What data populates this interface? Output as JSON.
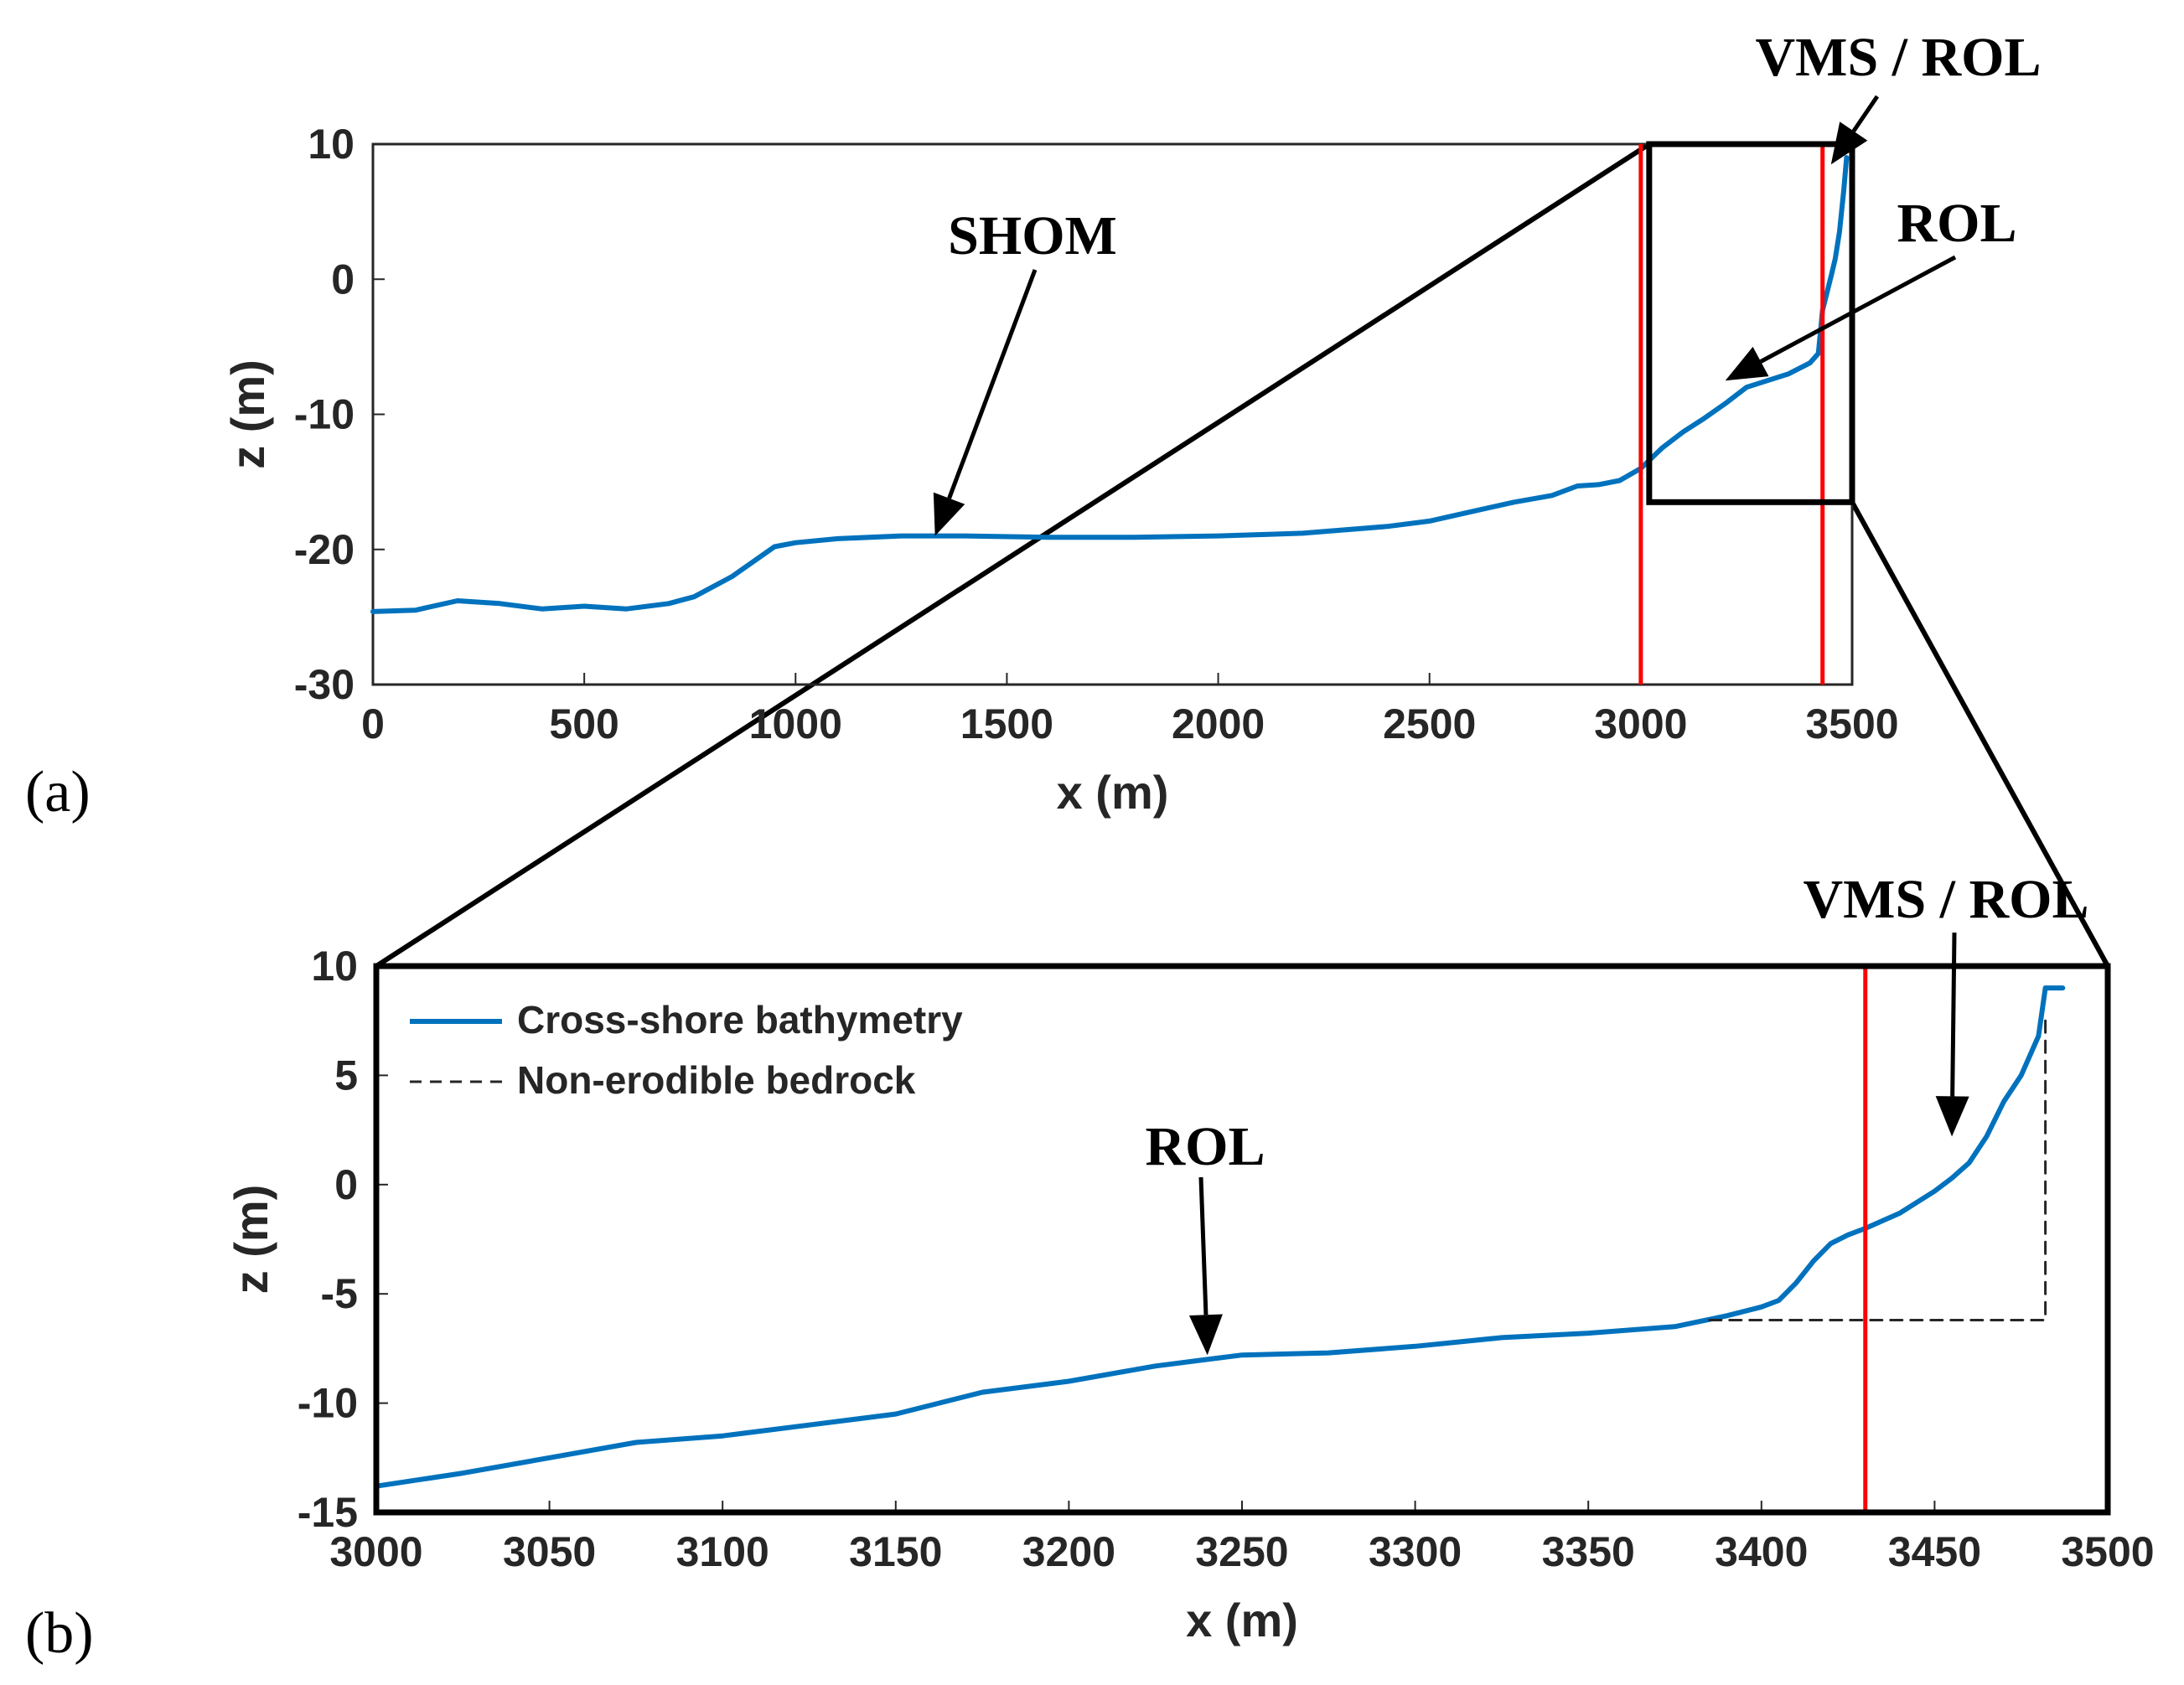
{
  "chart_data": [
    {
      "id": "a",
      "type": "line",
      "panel_label": "(a)",
      "xlabel": "x (m)",
      "ylabel": "z (m)",
      "xlim": [
        0,
        3500
      ],
      "ylim": [
        -30,
        10
      ],
      "xticks": [
        0,
        500,
        1000,
        1500,
        2000,
        2500,
        3000,
        3500
      ],
      "yticks": [
        10,
        0,
        -10,
        -20,
        -30
      ],
      "series": [
        {
          "name": "Cross-shore bathymetry",
          "color": "#0072bd",
          "x": [
            0,
            100,
            200,
            300,
            400,
            500,
            600,
            700,
            760,
            850,
            950,
            1000,
            1100,
            1250,
            1400,
            1600,
            1800,
            2000,
            2200,
            2400,
            2500,
            2600,
            2700,
            2790,
            2850,
            2900,
            2950,
            3000,
            3050,
            3100,
            3150,
            3200,
            3250,
            3300,
            3350,
            3400,
            3420,
            3430,
            3450,
            3460,
            3470,
            3480,
            3487
          ],
          "y": [
            -24.6,
            -24.5,
            -23.8,
            -24.0,
            -24.4,
            -24.2,
            -24.4,
            -24.0,
            -23.5,
            -22.0,
            -19.8,
            -19.5,
            -19.2,
            -19.0,
            -19.0,
            -19.1,
            -19.1,
            -19.0,
            -18.8,
            -18.3,
            -17.9,
            -17.2,
            -16.5,
            -16.0,
            -15.3,
            -15.2,
            -14.9,
            -14.0,
            -12.5,
            -11.3,
            -10.3,
            -9.2,
            -8.0,
            -7.5,
            -7.0,
            -6.2,
            -5.5,
            -2.3,
            0.2,
            1.5,
            3.5,
            6.5,
            9.0
          ]
        }
      ],
      "vlines": [
        3000,
        3430
      ],
      "vline_color": "#ff0000",
      "zoom_box": {
        "x": [
          3000,
          3500
        ],
        "y": [
          -16.5,
          10
        ]
      },
      "annotations": [
        {
          "text": "SHOM",
          "points_to": [
            1330,
            -19
          ]
        },
        {
          "text": "ROL",
          "points_to": [
            3200,
            -7.5
          ]
        },
        {
          "text": "VMS / ROL",
          "points_to": [
            3450,
            8.5
          ]
        }
      ]
    },
    {
      "id": "b",
      "type": "line",
      "panel_label": "(b)",
      "xlabel": "x (m)",
      "ylabel": "z (m)",
      "xlim": [
        3000,
        3500
      ],
      "ylim": [
        -15,
        10
      ],
      "xticks": [
        3000,
        3050,
        3100,
        3150,
        3200,
        3250,
        3300,
        3350,
        3400,
        3450,
        3500
      ],
      "yticks": [
        10,
        5,
        0,
        -5,
        -10,
        -15
      ],
      "legend": {
        "placement": "top-left",
        "entries": [
          "Cross-shore bathymetry",
          "Non-erodible bedrock"
        ]
      },
      "series": [
        {
          "name": "Cross-shore bathymetry",
          "color": "#0072bd",
          "style": "solid",
          "x": [
            3000,
            3025,
            3050,
            3075,
            3100,
            3125,
            3150,
            3175,
            3200,
            3225,
            3240,
            3250,
            3275,
            3300,
            3325,
            3350,
            3375,
            3390,
            3400,
            3405,
            3410,
            3415,
            3420,
            3425,
            3430,
            3440,
            3450,
            3455,
            3460,
            3465,
            3470,
            3475,
            3480,
            3482,
            3487
          ],
          "y": [
            -13.8,
            -13.2,
            -12.5,
            -11.8,
            -11.5,
            -11.0,
            -10.5,
            -9.5,
            -9.0,
            -8.3,
            -8.0,
            -7.8,
            -7.7,
            -7.4,
            -7.0,
            -6.8,
            -6.5,
            -6.0,
            -5.6,
            -5.3,
            -4.5,
            -3.5,
            -2.7,
            -2.3,
            -2.0,
            -1.3,
            -0.3,
            0.3,
            1.0,
            2.2,
            3.8,
            5.0,
            6.8,
            9.0,
            9.0
          ]
        },
        {
          "name": "Non-erodible bedrock",
          "color": "#262626",
          "style": "dashed",
          "x": [
            3385,
            3482,
            3482
          ],
          "y": [
            -6.2,
            -6.2,
            7.5
          ]
        }
      ],
      "vlines": [
        3430
      ],
      "vline_color": "#ff0000",
      "annotations": [
        {
          "text": "ROL",
          "points_to": [
            3240,
            -7.8
          ]
        },
        {
          "text": "VMS / ROL",
          "points_to": [
            3455,
            2.2
          ]
        }
      ]
    }
  ]
}
